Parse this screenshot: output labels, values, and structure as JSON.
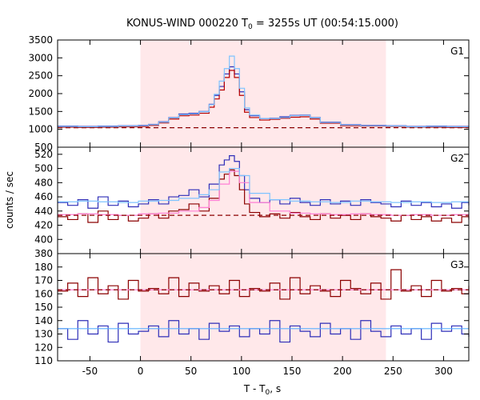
{
  "chart_data": {
    "type": "line",
    "title_main": "KONUS-WIND 000220 T",
    "title_sub": "0",
    "title_rest": " = 3255s UT (00:54:15.000)",
    "xlabel_main": "T - T",
    "xlabel_sub": "0",
    "xlabel_rest": ", s",
    "ylabel": "counts / sec",
    "xlim": [
      -82,
      325
    ],
    "xticks": [
      "-50",
      "0",
      "50",
      "100",
      "150",
      "200",
      "250",
      "300"
    ],
    "xtick_values": [
      -50,
      0,
      50,
      100,
      150,
      200,
      250,
      300
    ],
    "highlight_interval": [
      0,
      243
    ],
    "grid": false,
    "panels": [
      {
        "name": "G1",
        "ylim": [
          500,
          3500
        ],
        "yticks": [
          "500",
          "1000",
          "1500",
          "2000",
          "2500",
          "3000",
          "3500"
        ],
        "ytick_values": [
          500,
          1000,
          1500,
          2000,
          2500,
          3000,
          3500
        ],
        "background_level": 1045,
        "series": [
          {
            "color": "#2e2eb8",
            "x": [
              -82,
              -62,
              -42,
              -22,
              -2,
              8,
              18,
              28,
              38,
              48,
              58,
              68,
              73,
              78,
              83,
              88,
              93,
              98,
              103,
              108,
              118,
              128,
              138,
              148,
              158,
              168,
              178,
              198,
              218,
              243,
              263,
              283,
              303,
              325
            ],
            "y": [
              1090,
              1080,
              1090,
              1100,
              1110,
              1140,
              1210,
              1330,
              1430,
              1450,
              1500,
              1700,
              1950,
              2200,
              2550,
              2750,
              2550,
              2050,
              1550,
              1380,
              1300,
              1310,
              1350,
              1390,
              1400,
              1330,
              1200,
              1130,
              1110,
              1100,
              1080,
              1090,
              1080,
              1070
            ]
          },
          {
            "color": "#b80000",
            "x": [
              -82,
              -62,
              -42,
              -22,
              -2,
              8,
              18,
              28,
              38,
              48,
              58,
              68,
              73,
              78,
              83,
              88,
              93,
              98,
              103,
              108,
              118,
              128,
              138,
              148,
              158,
              168,
              178,
              198,
              218,
              243,
              263,
              283,
              303,
              325
            ],
            "y": [
              1060,
              1050,
              1060,
              1070,
              1080,
              1110,
              1180,
              1290,
              1380,
              1400,
              1450,
              1620,
              1850,
              2100,
              2450,
              2650,
              2450,
              1950,
              1480,
              1330,
              1260,
              1280,
              1310,
              1340,
              1350,
              1290,
              1170,
              1100,
              1090,
              1080,
              1060,
              1060,
              1050,
              1050
            ]
          },
          {
            "color": "#7fc4ff",
            "x": [
              -82,
              -62,
              -42,
              -22,
              -2,
              8,
              18,
              28,
              38,
              48,
              58,
              68,
              73,
              78,
              83,
              88,
              93,
              98,
              103,
              108,
              118,
              128,
              138,
              148,
              158,
              168,
              178,
              198,
              218,
              243,
              263,
              283,
              303,
              325
            ],
            "y": [
              1080,
              1070,
              1080,
              1090,
              1100,
              1130,
              1200,
              1320,
              1410,
              1430,
              1490,
              1690,
              1980,
              2350,
              2700,
              3050,
              2700,
              2150,
              1600,
              1400,
              1300,
              1300,
              1330,
              1380,
              1390,
              1320,
              1190,
              1120,
              1100,
              1090,
              1070,
              1080,
              1070,
              1060
            ]
          }
        ]
      },
      {
        "name": "G2",
        "ylim": [
          380,
          530
        ],
        "yticks": [
          "380",
          "400",
          "420",
          "440",
          "460",
          "480",
          "500",
          "520"
        ],
        "ytick_values": [
          380,
          400,
          420,
          440,
          460,
          480,
          500,
          520
        ],
        "background_level": 434,
        "series": [
          {
            "color": "#2e2eb8",
            "x": [
              -82,
              -72,
              -62,
              -52,
              -42,
              -32,
              -22,
              -12,
              -2,
              8,
              18,
              28,
              38,
              48,
              58,
              68,
              78,
              83,
              88,
              93,
              98,
              103,
              108,
              118,
              128,
              138,
              148,
              158,
              168,
              178,
              188,
              198,
              208,
              218,
              228,
              238,
              248,
              258,
              268,
              278,
              288,
              298,
              308,
              318,
              325
            ],
            "y": [
              452,
              448,
              456,
              444,
              460,
              448,
              454,
              446,
              450,
              456,
              450,
              460,
              462,
              470,
              460,
              478,
              505,
              512,
              518,
              510,
              490,
              470,
              458,
              452,
              456,
              450,
              458,
              452,
              448,
              456,
              450,
              454,
              448,
              456,
              452,
              450,
              446,
              454,
              448,
              452,
              446,
              450,
              444,
              452,
              448
            ]
          },
          {
            "color": "#8b0000",
            "x": [
              -82,
              -72,
              -62,
              -52,
              -42,
              -32,
              -22,
              -12,
              -2,
              8,
              18,
              28,
              38,
              48,
              58,
              68,
              78,
              83,
              88,
              93,
              98,
              103,
              108,
              118,
              128,
              138,
              148,
              158,
              168,
              178,
              188,
              198,
              208,
              218,
              228,
              238,
              248,
              258,
              268,
              278,
              288,
              298,
              308,
              318,
              325
            ],
            "y": [
              432,
              428,
              436,
              424,
              440,
              428,
              434,
              426,
              430,
              436,
              430,
              440,
              442,
              450,
              440,
              458,
              485,
              492,
              498,
              490,
              470,
              450,
              438,
              432,
              436,
              430,
              438,
              432,
              428,
              436,
              430,
              434,
              428,
              436,
              432,
              430,
              426,
              434,
              428,
              432,
              426,
              430,
              424,
              432,
              428
            ]
          },
          {
            "color": "#ff7fd4",
            "x": [
              -82,
              -62,
              -42,
              -22,
              -2,
              18,
              38,
              58,
              68,
              78,
              88,
              98,
              108,
              128,
              148,
              168,
              188,
              208,
              228,
              248,
              268,
              288,
              308,
              325
            ],
            "y": [
              435,
              436,
              435,
              434,
              436,
              437,
              440,
              445,
              455,
              478,
              496,
              480,
              452,
              440,
              437,
              436,
              435,
              436,
              435,
              434,
              435,
              434,
              435,
              434
            ]
          },
          {
            "color": "#7fc4ff",
            "x": [
              -82,
              -62,
              -42,
              -22,
              -2,
              18,
              38,
              58,
              68,
              78,
              88,
              98,
              108,
              128,
              148,
              168,
              188,
              208,
              228,
              248,
              268,
              288,
              308,
              325
            ],
            "y": [
              453,
              454,
              453,
              452,
              454,
              455,
              458,
              463,
              470,
              495,
              500,
              490,
              465,
              456,
              454,
              453,
              452,
              454,
              453,
              452,
              453,
              452,
              453,
              452
            ]
          }
        ]
      },
      {
        "name": "G3",
        "ylim": [
          110,
          190
        ],
        "yticks": [
          "110",
          "120",
          "130",
          "140",
          "150",
          "160",
          "170",
          "180"
        ],
        "ytick_values": [
          110,
          120,
          130,
          140,
          150,
          160,
          170,
          180
        ],
        "background_level": 163,
        "series": [
          {
            "color": "#8b0000",
            "x": [
              -82,
              -72,
              -62,
              -52,
              -42,
              -32,
              -22,
              -12,
              -2,
              8,
              18,
              28,
              38,
              48,
              58,
              68,
              78,
              88,
              98,
              108,
              118,
              128,
              138,
              148,
              158,
              168,
              178,
              188,
              198,
              208,
              218,
              228,
              238,
              248,
              258,
              268,
              278,
              288,
              298,
              308,
              318,
              325
            ],
            "y": [
              162,
              168,
              158,
              172,
              160,
              166,
              156,
              170,
              162,
              164,
              160,
              172,
              158,
              168,
              162,
              166,
              160,
              170,
              158,
              164,
              162,
              168,
              156,
              172,
              160,
              166,
              162,
              158,
              170,
              164,
              160,
              168,
              156,
              178,
              162,
              166,
              158,
              170,
              162,
              164,
              160,
              166
            ]
          },
          {
            "color": "#2e2eb8",
            "x": [
              -82,
              -72,
              -62,
              -52,
              -42,
              -32,
              -22,
              -12,
              -2,
              8,
              18,
              28,
              38,
              48,
              58,
              68,
              78,
              88,
              98,
              108,
              118,
              128,
              138,
              148,
              158,
              168,
              178,
              188,
              198,
              208,
              218,
              228,
              238,
              248,
              258,
              268,
              278,
              288,
              298,
              308,
              318,
              325
            ],
            "y": [
              134,
              126,
              140,
              130,
              136,
              124,
              138,
              130,
              132,
              136,
              128,
              140,
              130,
              134,
              126,
              138,
              132,
              136,
              128,
              134,
              130,
              140,
              124,
              136,
              132,
              128,
              138,
              130,
              134,
              126,
              140,
              132,
              128,
              136,
              130,
              134,
              126,
              138,
              132,
              136,
              130,
              128
            ]
          },
          {
            "color": "#ff7fd4",
            "x": [
              -82,
              325
            ],
            "y": [
              163,
              163
            ]
          },
          {
            "color": "#5ab0ff",
            "x": [
              -82,
              325
            ],
            "y": [
              134,
              134
            ]
          }
        ]
      }
    ]
  }
}
